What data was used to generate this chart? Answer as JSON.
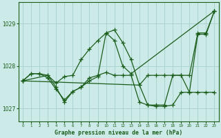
{
  "title": "Graphe pression niveau de la mer (hPa)",
  "bg_color": "#cceae7",
  "grid_color": "#aad4d0",
  "line_color": "#1a5c1a",
  "marker_color": "#1a5c1a",
  "text_color": "#1a5c1a",
  "xlim": [
    -0.5,
    23.5
  ],
  "ylim": [
    1026.7,
    1029.5
  ],
  "yticks": [
    1027,
    1028,
    1029
  ],
  "xticks": [
    0,
    1,
    2,
    3,
    4,
    5,
    6,
    7,
    8,
    9,
    10,
    11,
    12,
    13,
    14,
    15,
    16,
    17,
    18,
    19,
    20,
    21,
    22,
    23
  ],
  "series1_x": [
    0,
    1,
    2,
    3,
    4,
    5,
    6,
    7,
    8,
    9,
    10,
    11,
    12,
    13,
    23
  ],
  "series1_y": [
    1027.65,
    1027.82,
    1027.82,
    1027.78,
    1027.6,
    1027.75,
    1027.78,
    1028.15,
    1028.4,
    1028.6,
    1028.78,
    1028.6,
    1028.0,
    1027.82,
    1029.3
  ],
  "series2_x": [
    0,
    1,
    2,
    3,
    4,
    5,
    6,
    7,
    8,
    9,
    10,
    11,
    12,
    13,
    14,
    15,
    16,
    17,
    18,
    19,
    20,
    21,
    22,
    23
  ],
  "series2_y": [
    1027.65,
    1027.82,
    1027.82,
    1027.72,
    1027.45,
    1027.2,
    1027.4,
    1027.5,
    1027.65,
    1027.75,
    1028.78,
    1028.85,
    1028.55,
    1028.15,
    1027.55,
    1027.78,
    1027.78,
    1027.78,
    1027.78,
    1027.78,
    1027.78,
    1028.78,
    1028.78,
    1029.3
  ],
  "series3_x": [
    0,
    3,
    4,
    5,
    6,
    7,
    8,
    9,
    10,
    11,
    12,
    13,
    14,
    15,
    16,
    17,
    18,
    19,
    20,
    21,
    22,
    23
  ],
  "series3_y": [
    1027.65,
    1027.78,
    1027.5,
    1027.15,
    1027.4,
    1027.5,
    1027.72,
    1027.78,
    1027.85,
    1027.78,
    1027.78,
    1027.78,
    1027.15,
    1027.08,
    1027.08,
    1027.08,
    1027.78,
    1027.78,
    1027.38,
    1027.38,
    1027.38,
    1027.38
  ],
  "series4_x": [
    0,
    14,
    15,
    16,
    17,
    18,
    19,
    20,
    21,
    22,
    23
  ],
  "series4_y": [
    1027.65,
    1027.55,
    1027.08,
    1027.05,
    1027.05,
    1027.08,
    1027.38,
    1027.38,
    1028.75,
    1028.75,
    1029.3
  ]
}
